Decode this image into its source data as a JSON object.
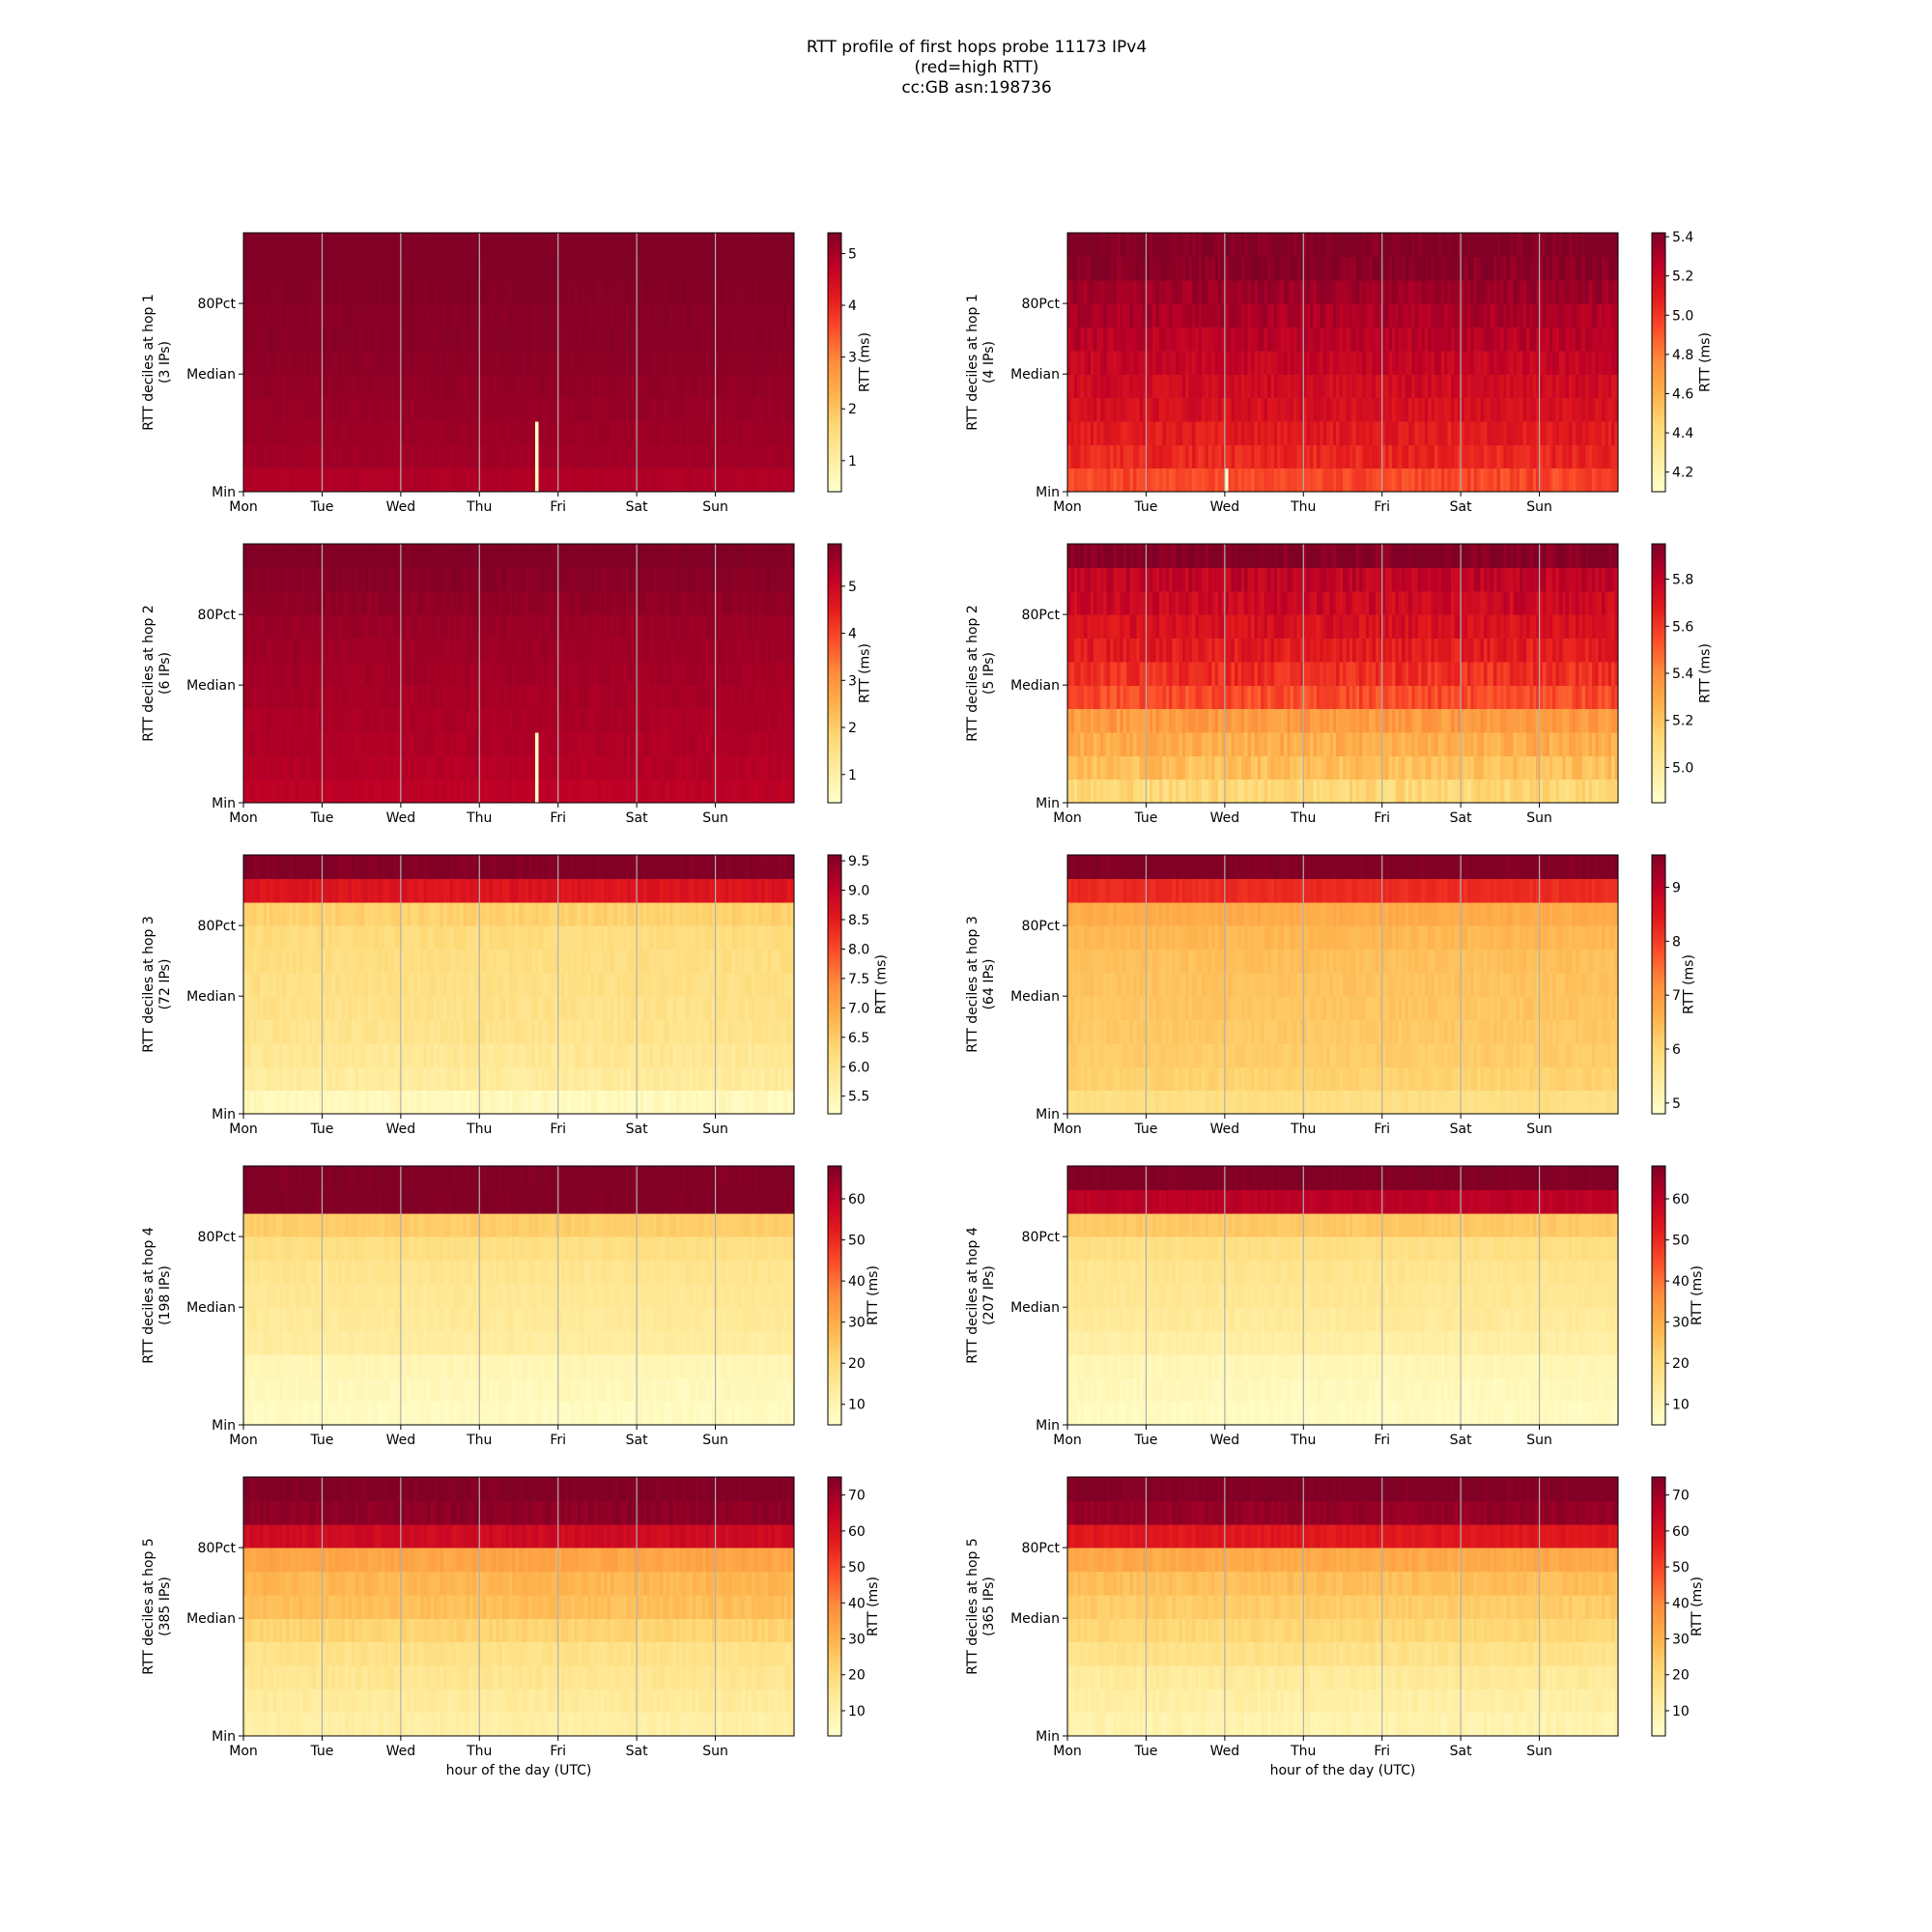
{
  "figure": {
    "title_lines": [
      "RTT profile of first hops probe 11173 IPv4",
      "(red=high RTT)",
      "cc:GB asn:198736"
    ],
    "xlabel": "hour of the day (UTC)"
  },
  "chart_data": [
    {
      "type": "heatmap",
      "column": "left",
      "hop": 1,
      "ylabel": [
        "RTT deciles at hop 1",
        "(3 IPs)"
      ],
      "categories": [
        "Mon",
        "Tue",
        "Wed",
        "Thu",
        "Fri",
        "Sat",
        "Sun"
      ],
      "y_ticks": [
        "Min",
        "Median",
        "80Pct"
      ],
      "colorbar_label": "RTT (ms)",
      "colorbar_ticks": [
        1,
        2,
        3,
        4,
        5
      ],
      "colorbar_range": [
        0.4,
        5.4
      ],
      "decile_rtt": [
        4.9,
        5.05,
        5.1,
        5.15,
        5.2,
        5.25,
        5.3,
        5.3,
        5.35,
        5.4,
        5.4
      ],
      "noise": 0.05,
      "anomalies": [
        {
          "day": 3.7,
          "low_deciles": 3,
          "rtt": 0.5
        }
      ],
      "xlabel": ""
    },
    {
      "type": "heatmap",
      "column": "right",
      "hop": 1,
      "ylabel": [
        "RTT deciles at hop 1",
        "(4 IPs)"
      ],
      "categories": [
        "Mon",
        "Tue",
        "Wed",
        "Thu",
        "Fri",
        "Sat",
        "Sun"
      ],
      "y_ticks": [
        "Min",
        "Median",
        "80Pct"
      ],
      "colorbar_label": "RTT (ms)",
      "colorbar_ticks": [
        4.2,
        4.4,
        4.6,
        4.8,
        5.0,
        5.2,
        5.4
      ],
      "colorbar_range": [
        4.1,
        5.42
      ],
      "decile_rtt": [
        4.95,
        5.05,
        5.1,
        5.15,
        5.18,
        5.22,
        5.26,
        5.3,
        5.34,
        5.4,
        5.42
      ],
      "noise": 0.06,
      "anomalies": [
        {
          "day": 2.02,
          "low_deciles": 1,
          "rtt": 4.1
        }
      ],
      "xlabel": ""
    },
    {
      "type": "heatmap",
      "column": "left",
      "hop": 2,
      "ylabel": [
        "RTT deciles at hop 2",
        "(6 IPs)"
      ],
      "categories": [
        "Mon",
        "Tue",
        "Wed",
        "Thu",
        "Fri",
        "Sat",
        "Sun"
      ],
      "y_ticks": [
        "Min",
        "Median",
        "80Pct"
      ],
      "colorbar_label": "RTT (ms)",
      "colorbar_ticks": [
        1,
        2,
        3,
        4,
        5
      ],
      "colorbar_range": [
        0.4,
        5.9
      ],
      "decile_rtt": [
        5.2,
        5.3,
        5.35,
        5.4,
        5.45,
        5.5,
        5.55,
        5.6,
        5.7,
        5.8,
        5.9
      ],
      "noise": 0.08,
      "anomalies": [
        {
          "day": 3.7,
          "low_deciles": 3,
          "rtt": 0.5
        }
      ],
      "xlabel": ""
    },
    {
      "type": "heatmap",
      "column": "right",
      "hop": 2,
      "ylabel": [
        "RTT deciles at hop 2",
        "(5 IPs)"
      ],
      "categories": [
        "Mon",
        "Tue",
        "Wed",
        "Thu",
        "Fri",
        "Sat",
        "Sun"
      ],
      "y_ticks": [
        "Min",
        "Median",
        "80Pct"
      ],
      "colorbar_label": "RTT (ms)",
      "colorbar_ticks": [
        5.0,
        5.2,
        5.4,
        5.6,
        5.8
      ],
      "colorbar_range": [
        4.85,
        5.95
      ],
      "decile_rtt": [
        5.12,
        5.22,
        5.28,
        5.35,
        5.55,
        5.62,
        5.68,
        5.72,
        5.76,
        5.8,
        5.95
      ],
      "noise": 0.06,
      "anomalies": [],
      "xlabel": ""
    },
    {
      "type": "heatmap",
      "column": "left",
      "hop": 3,
      "ylabel": [
        "RTT deciles at hop 3",
        "(72 IPs)"
      ],
      "categories": [
        "Mon",
        "Tue",
        "Wed",
        "Thu",
        "Fri",
        "Sat",
        "Sun"
      ],
      "y_ticks": [
        "Min",
        "Median",
        "80Pct"
      ],
      "colorbar_label": "RTT (ms)",
      "colorbar_ticks": [
        5.5,
        6.0,
        6.5,
        7.0,
        7.5,
        8.0,
        8.5,
        9.0,
        9.5
      ],
      "colorbar_range": [
        5.2,
        9.6
      ],
      "decile_rtt": [
        5.4,
        5.8,
        5.9,
        6.0,
        6.05,
        6.1,
        6.15,
        6.2,
        6.4,
        8.6,
        9.6
      ],
      "noise": 0.12,
      "anomalies": [],
      "xlabel": ""
    },
    {
      "type": "heatmap",
      "column": "right",
      "hop": 3,
      "ylabel": [
        "RTT deciles at hop 3",
        "(64 IPs)"
      ],
      "categories": [
        "Mon",
        "Tue",
        "Wed",
        "Thu",
        "Fri",
        "Sat",
        "Sun"
      ],
      "y_ticks": [
        "Min",
        "Median",
        "80Pct"
      ],
      "colorbar_label": "RTT (ms)",
      "colorbar_ticks": [
        5,
        6,
        7,
        8,
        9
      ],
      "colorbar_range": [
        4.8,
        9.6
      ],
      "decile_rtt": [
        5.8,
        6.1,
        6.2,
        6.25,
        6.3,
        6.35,
        6.4,
        6.5,
        6.7,
        8.2,
        9.6
      ],
      "noise": 0.1,
      "anomalies": [],
      "xlabel": ""
    },
    {
      "type": "heatmap",
      "column": "left",
      "hop": 4,
      "ylabel": [
        "RTT deciles at hop 4",
        "(198 IPs)"
      ],
      "categories": [
        "Mon",
        "Tue",
        "Wed",
        "Thu",
        "Fri",
        "Sat",
        "Sun"
      ],
      "y_ticks": [
        "Min",
        "Median",
        "80Pct"
      ],
      "colorbar_label": "RTT (ms)",
      "colorbar_ticks": [
        10,
        20,
        30,
        40,
        50,
        60
      ],
      "colorbar_range": [
        5,
        68
      ],
      "decile_rtt": [
        7,
        8,
        9,
        13,
        14,
        15,
        16,
        18,
        23,
        68,
        68
      ],
      "noise": 1.2,
      "anomalies": [],
      "xlabel": ""
    },
    {
      "type": "heatmap",
      "column": "right",
      "hop": 4,
      "ylabel": [
        "RTT deciles at hop 4",
        "(207 IPs)"
      ],
      "categories": [
        "Mon",
        "Tue",
        "Wed",
        "Thu",
        "Fri",
        "Sat",
        "Sun"
      ],
      "y_ticks": [
        "Min",
        "Median",
        "80Pct"
      ],
      "colorbar_label": "RTT (ms)",
      "colorbar_ticks": [
        10,
        20,
        30,
        40,
        50,
        60
      ],
      "colorbar_range": [
        5,
        68
      ],
      "decile_rtt": [
        7,
        8,
        9,
        12,
        14,
        15,
        16,
        18,
        24,
        60,
        68
      ],
      "noise": 1.2,
      "anomalies": [],
      "xlabel": ""
    },
    {
      "type": "heatmap",
      "column": "left",
      "hop": 5,
      "ylabel": [
        "RTT deciles at hop 5",
        "(385 IPs)"
      ],
      "categories": [
        "Mon",
        "Tue",
        "Wed",
        "Thu",
        "Fri",
        "Sat",
        "Sun"
      ],
      "y_ticks": [
        "Min",
        "Median",
        "80Pct"
      ],
      "colorbar_label": "RTT (ms)",
      "colorbar_ticks": [
        10,
        20,
        30,
        40,
        50,
        60,
        70
      ],
      "colorbar_range": [
        3,
        75
      ],
      "decile_rtt": [
        11,
        13,
        15,
        17,
        22,
        27,
        29,
        33,
        62,
        73,
        75
      ],
      "noise": 1.8,
      "anomalies": [],
      "xlabel": "hour of the day (UTC)"
    },
    {
      "type": "heatmap",
      "column": "right",
      "hop": 5,
      "ylabel": [
        "RTT deciles at hop 5",
        "(365 IPs)"
      ],
      "categories": [
        "Mon",
        "Tue",
        "Wed",
        "Thu",
        "Fri",
        "Sat",
        "Sun"
      ],
      "y_ticks": [
        "Min",
        "Median",
        "80Pct"
      ],
      "colorbar_label": "RTT (ms)",
      "colorbar_ticks": [
        10,
        20,
        30,
        40,
        50,
        60,
        70
      ],
      "colorbar_range": [
        3,
        75
      ],
      "decile_rtt": [
        9,
        11,
        13,
        17,
        21,
        24,
        27,
        32,
        58,
        72,
        75
      ],
      "noise": 1.8,
      "anomalies": [],
      "xlabel": "hour of the day (UTC)"
    }
  ]
}
